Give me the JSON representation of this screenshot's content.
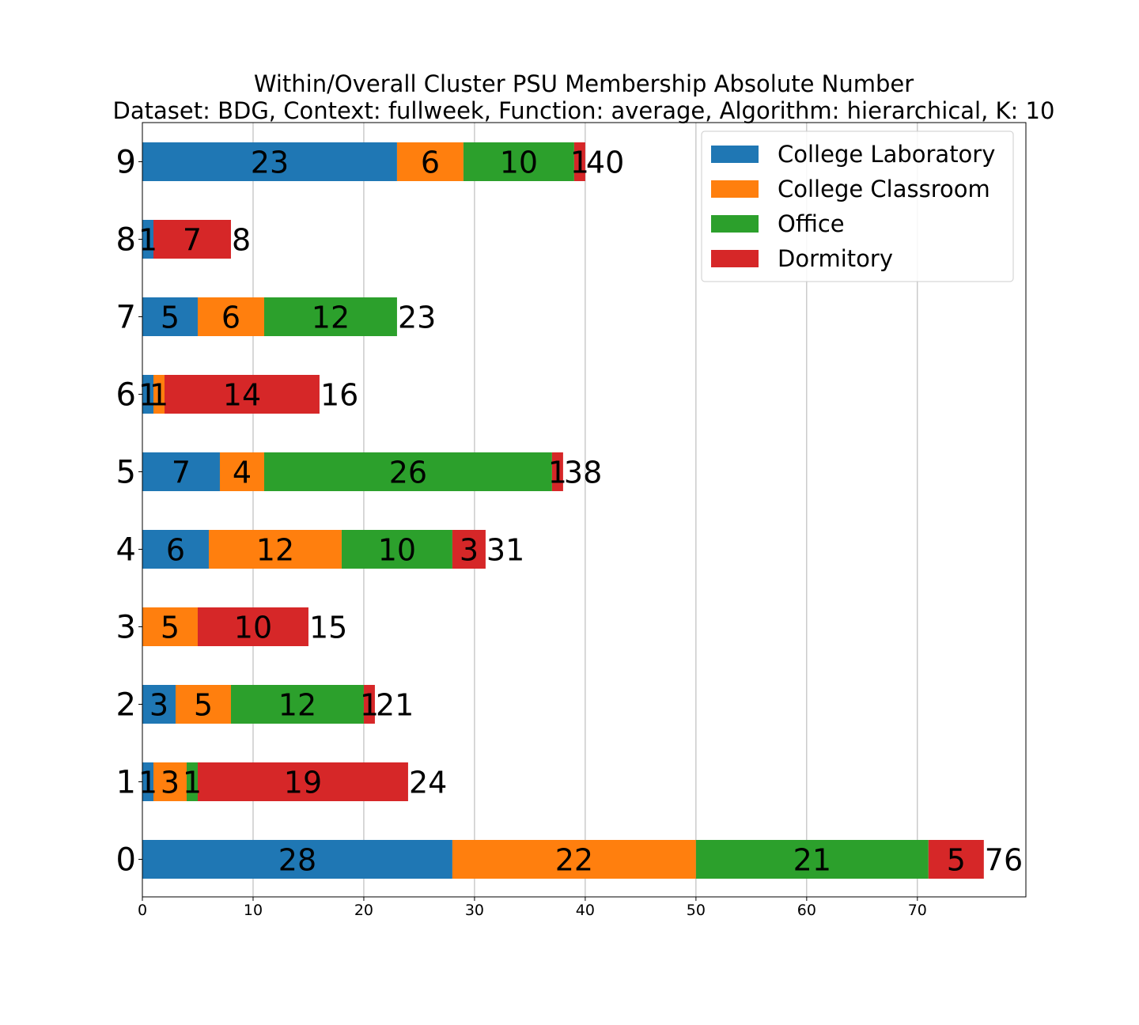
{
  "chart_data": {
    "type": "bar",
    "orientation": "horizontal",
    "stacked": true,
    "title": "Within/Overall Cluster PSU Membership Absolute Number",
    "subtitle": "Dataset: BDG, Context: fullweek, Function: average, Algorithm: hierarchical, K: 10",
    "xlabel": "",
    "ylabel": "",
    "xlim": [
      0,
      79.8
    ],
    "xticks": [
      "0",
      "10",
      "20",
      "30",
      "40",
      "50",
      "60",
      "70"
    ],
    "categories": [
      "0",
      "1",
      "2",
      "3",
      "4",
      "5",
      "6",
      "7",
      "8",
      "9"
    ],
    "series": [
      {
        "name": "College Laboratory",
        "color": "#1f77b4",
        "values": [
          28,
          1,
          3,
          0,
          6,
          7,
          1,
          5,
          1,
          23
        ]
      },
      {
        "name": "College Classroom",
        "color": "#ff7f0e",
        "values": [
          22,
          3,
          5,
          5,
          12,
          4,
          1,
          6,
          0,
          6
        ]
      },
      {
        "name": "Office",
        "color": "#2ca02c",
        "values": [
          21,
          1,
          12,
          0,
          10,
          26,
          0,
          12,
          0,
          10
        ]
      },
      {
        "name": "Dormitory",
        "color": "#d62728",
        "values": [
          5,
          19,
          1,
          10,
          3,
          1,
          14,
          0,
          7,
          1
        ]
      }
    ],
    "totals": [
      76,
      24,
      21,
      15,
      31,
      38,
      16,
      23,
      8,
      40
    ],
    "grid": "vertical",
    "legend": "top-right"
  }
}
